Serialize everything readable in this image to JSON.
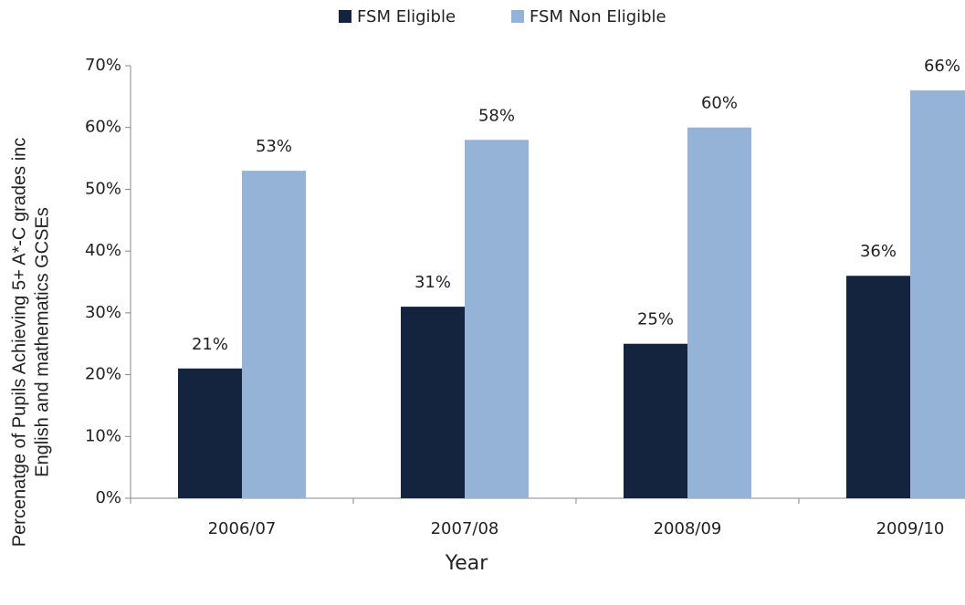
{
  "chart_data": {
    "type": "bar",
    "categories": [
      "2006/07",
      "2007/08",
      "2008/09",
      "2009/10"
    ],
    "series": [
      {
        "name": "FSM Eligible",
        "color": "#14243f",
        "values": [
          21,
          31,
          25,
          36
        ],
        "value_labels": [
          "21%",
          "31%",
          "25%",
          "36%"
        ]
      },
      {
        "name": "FSM Non Eligible",
        "color": "#95b3d7",
        "values": [
          53,
          58,
          60,
          66
        ],
        "value_labels": [
          "53%",
          "58%",
          "60%",
          "66%"
        ]
      }
    ],
    "xlabel": "Year",
    "ylabel": [
      "Percenatge of Pupils Achieving 5+ A*-C grades inc",
      "English and mathematics GCSEs"
    ],
    "ylim": [
      0,
      70
    ],
    "yticks": [
      {
        "value": 0,
        "label": "0%"
      },
      {
        "value": 10,
        "label": "10%"
      },
      {
        "value": 20,
        "label": "20%"
      },
      {
        "value": 30,
        "label": "30%"
      },
      {
        "value": 40,
        "label": "40%"
      },
      {
        "value": 50,
        "label": "50%"
      },
      {
        "value": 60,
        "label": "60%"
      },
      {
        "value": 70,
        "label": "70%"
      }
    ],
    "legend": "top",
    "grid": false
  }
}
